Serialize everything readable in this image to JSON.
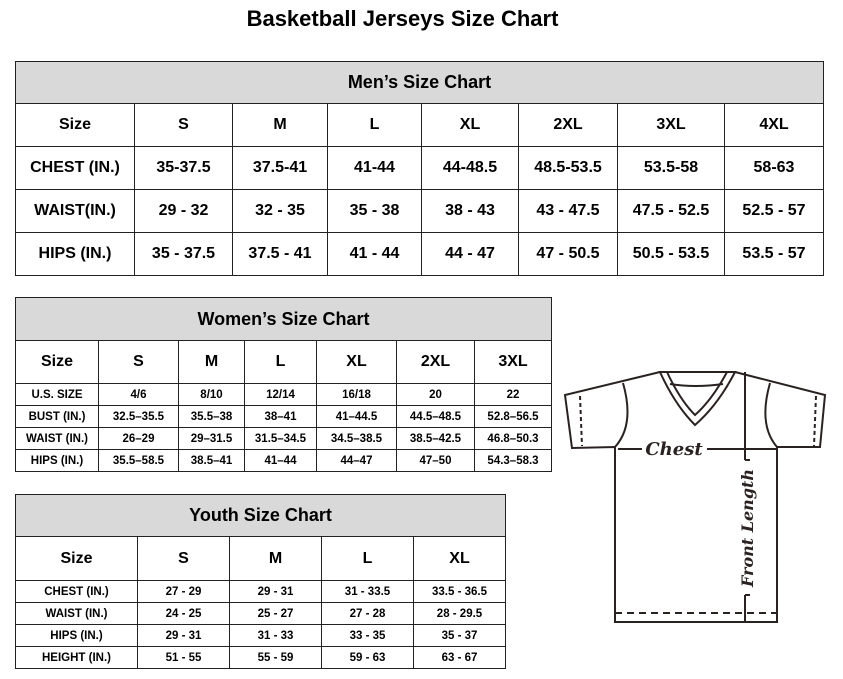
{
  "title": "Basketball Jerseys Size Chart",
  "mens": {
    "heading": "Men’s Size Chart",
    "header": [
      "Size",
      "S",
      "M",
      "L",
      "XL",
      "2XL",
      "3XL",
      "4XL"
    ],
    "rows": [
      [
        "CHEST (IN.)",
        "35-37.5",
        "37.5-41",
        "41-44",
        "44-48.5",
        "48.5-53.5",
        "53.5-58",
        "58-63"
      ],
      [
        "WAIST(IN.)",
        "29 - 32",
        "32 - 35",
        "35 - 38",
        "38 - 43",
        "43 - 47.5",
        "47.5 - 52.5",
        "52.5 - 57"
      ],
      [
        "HIPS (IN.)",
        "35 - 37.5",
        "37.5 - 41",
        "41 - 44",
        "44 - 47",
        "47 - 50.5",
        "50.5 - 53.5",
        "53.5 - 57"
      ]
    ]
  },
  "womens": {
    "heading": "Women’s Size Chart",
    "header": [
      "Size",
      "S",
      "M",
      "L",
      "XL",
      "2XL",
      "3XL"
    ],
    "rows": [
      [
        "U.S. SIZE",
        "4/6",
        "8/10",
        "12/14",
        "16/18",
        "20",
        "22"
      ],
      [
        "BUST (IN.)",
        "32.5–35.5",
        "35.5–38",
        "38–41",
        "41–44.5",
        "44.5–48.5",
        "52.8–56.5"
      ],
      [
        "WAIST (IN.)",
        "26–29",
        "29–31.5",
        "31.5–34.5",
        "34.5–38.5",
        "38.5–42.5",
        "46.8–50.3"
      ],
      [
        "HIPS (IN.)",
        "35.5–58.5",
        "38.5–41",
        "41–44",
        "44–47",
        "47–50",
        "54.3–58.3"
      ]
    ]
  },
  "youth": {
    "heading": "Youth Size Chart",
    "header": [
      "Size",
      "S",
      "M",
      "L",
      "XL"
    ],
    "rows": [
      [
        "CHEST (IN.)",
        "27 - 29",
        "29 - 31",
        "31 - 33.5",
        "33.5 - 36.5"
      ],
      [
        "WAIST (IN.)",
        "24 - 25",
        "25 - 27",
        "27 - 28",
        "28 - 29.5"
      ],
      [
        "HIPS (IN.)",
        "29 - 31",
        "31 - 33",
        "33 - 35",
        "35 - 37"
      ],
      [
        "HEIGHT (IN.)",
        "51 - 55",
        "55 - 59",
        "59 - 63",
        "63 - 67"
      ]
    ]
  },
  "diagram": {
    "chest_label": "Chest",
    "length_label": "Front Length",
    "line_color": "#2a2220"
  }
}
